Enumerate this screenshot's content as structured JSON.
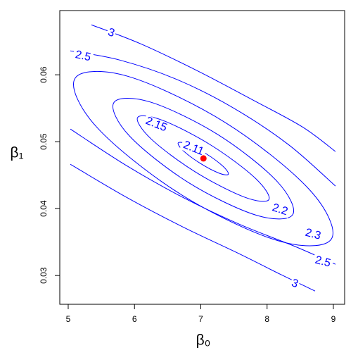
{
  "chart_data": {
    "type": "contour",
    "xlabel": "β₀",
    "ylabel": "β₁",
    "xlim": [
      4.873,
      9.17
    ],
    "ylim": [
      0.0257,
      0.0696
    ],
    "xticks": [
      5,
      6,
      7,
      8,
      9
    ],
    "yticks": [
      0.03,
      0.04,
      0.05,
      0.06
    ],
    "grid": false,
    "series": [
      {
        "name": "2.11",
        "color": "#0000ff",
        "closed": true,
        "x": [
          7.415,
          7.273,
          6.993,
          6.738,
          6.659,
          6.802,
          7.082,
          7.336
        ],
        "y": [
          0.04513,
          0.04531,
          0.04676,
          0.04863,
          0.04982,
          0.04964,
          0.04819,
          0.04632
        ]
      },
      {
        "name": "2.15",
        "color": "#0000ff",
        "closed": true,
        "x": [
          8.027,
          7.65,
          6.913,
          6.25,
          6.047,
          6.424,
          7.161,
          7.824
        ],
        "y": [
          0.04134,
          0.04175,
          0.04551,
          0.05042,
          0.05361,
          0.0532,
          0.04944,
          0.04453
        ]
      },
      {
        "name": "2.2",
        "color": "#0000ff",
        "closed": true,
        "x": [
          8.387,
          7.832,
          6.812,
          5.924,
          5.688,
          6.242,
          7.262,
          8.15
        ],
        "y": [
          0.03911,
          0.03903,
          0.04391,
          0.05086,
          0.05584,
          0.05592,
          0.05104,
          0.04408
        ]
      },
      {
        "name": "2.3",
        "color": "#0000ff",
        "closed": true,
        "x": [
          8.971,
          8.166,
          6.7,
          5.431,
          5.103,
          5.908,
          7.375,
          8.644
        ],
        "y": [
          0.03547,
          0.0352,
          0.04212,
          0.05217,
          0.05947,
          0.05975,
          0.05283,
          0.04278
        ]
      },
      {
        "name": "2.5",
        "color": "#0000ff",
        "closed": false,
        "x": [
          5.032,
          5.775,
          6.623,
          7.472,
          8.321,
          9.032,
          null,
          5.032,
          5.881,
          6.729,
          7.578,
          8.427,
          9.032
        ],
        "y": [
          0.06358,
          0.06221,
          0.05937,
          0.05516,
          0.04958,
          0.04337,
          null,
          0.05189,
          0.04642,
          0.04168,
          0.03768,
          0.03432,
          0.03168
        ]
      },
      {
        "name": "3",
        "color": "#0000ff",
        "closed": false,
        "x": [
          5.35,
          6.093,
          6.942,
          7.79,
          8.533,
          9.032,
          null,
          5.032,
          5.881,
          6.729,
          7.578,
          8.215,
          8.724
        ],
        "y": [
          0.06747,
          0.06463,
          0.06063,
          0.05621,
          0.05221,
          0.04853,
          null,
          0.04663,
          0.04168,
          0.03726,
          0.03326,
          0.03011,
          0.02768
        ]
      }
    ],
    "point": {
      "x": 7.04,
      "y": 0.0475,
      "color": "#ff0000"
    }
  }
}
